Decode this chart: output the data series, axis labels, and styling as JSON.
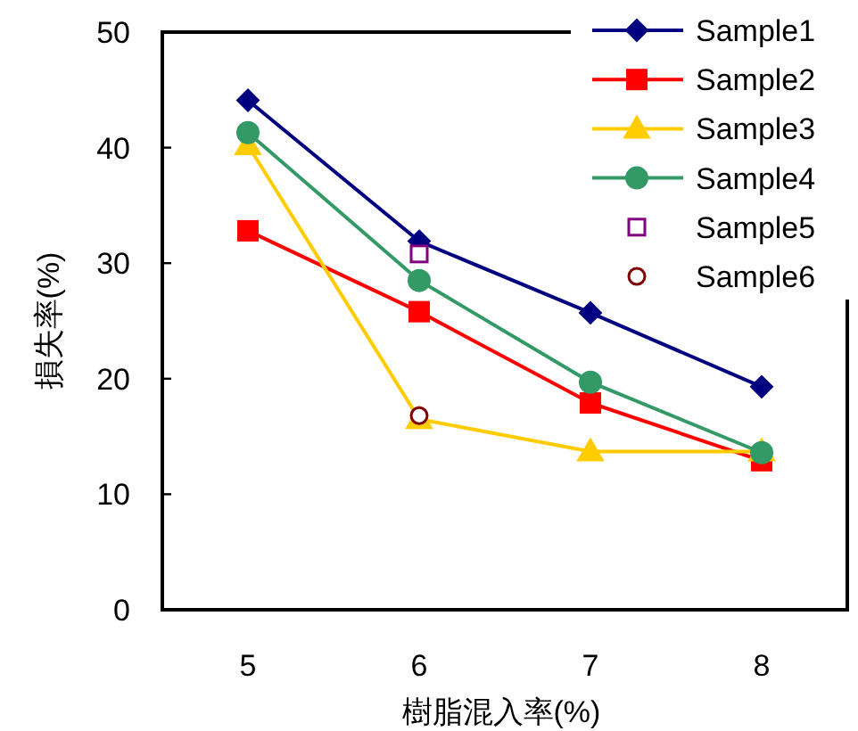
{
  "chart_data": {
    "type": "line",
    "xlabel": "樹脂混入率(%)",
    "ylabel": "損失率(%)",
    "categories": [
      "5",
      "6",
      "7",
      "8"
    ],
    "ylim": [
      0,
      50
    ],
    "yticks": [
      0,
      10,
      20,
      30,
      40,
      50
    ],
    "legend": "top right",
    "grid": false,
    "line_style": "solid",
    "series": [
      {
        "name": "Sample1",
        "color": "#000080",
        "marker": "diamond",
        "values": [
          44.1,
          31.9,
          25.7,
          19.3
        ]
      },
      {
        "name": "Sample2",
        "color": "#ff0000",
        "marker": "square",
        "values": [
          32.8,
          25.8,
          17.9,
          12.9
        ]
      },
      {
        "name": "Sample3",
        "color": "#ffcc00",
        "marker": "triangle",
        "values": [
          40.2,
          16.5,
          13.7,
          13.7
        ]
      },
      {
        "name": "Sample4",
        "color": "#339966",
        "marker": "circle",
        "values": [
          41.3,
          28.5,
          19.7,
          13.6
        ]
      },
      {
        "name": "Sample5",
        "color": "#800080",
        "marker": "square",
        "type": "scatter",
        "values": [
          null,
          30.8,
          null,
          null
        ]
      },
      {
        "name": "Sample6",
        "color": "#800000",
        "marker": "circle",
        "type": "scatter",
        "values": [
          null,
          16.8,
          null,
          null
        ]
      }
    ]
  }
}
